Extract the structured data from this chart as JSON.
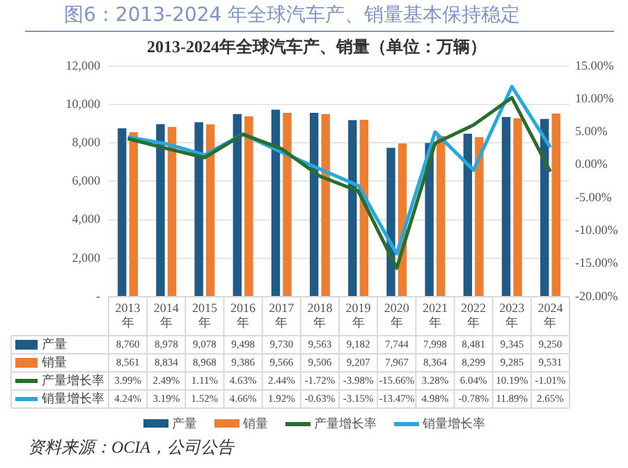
{
  "chart_data": {
    "type": "bar",
    "title": "2013-2024年全球汽车产、销量（单位：万辆）",
    "subtitle": "图6：2013-2024 年全球汽车产、销量基本保持稳定",
    "categories": [
      "2013年",
      "2014年",
      "2015年",
      "2016年",
      "2017年",
      "2018年",
      "2019年",
      "2020年",
      "2021年",
      "2022年",
      "2023年",
      "2024年"
    ],
    "series": [
      {
        "name": "产量",
        "color": "#1f5b86",
        "values": [
          8760,
          8978,
          9078,
          9498,
          9730,
          9563,
          9182,
          7744,
          7998,
          8481,
          9345,
          9250
        ],
        "value_labels": [
          "8,760",
          "8,978",
          "9,078",
          "9,498",
          "9,730",
          "9,563",
          "9,182",
          "7,744",
          "7,998",
          "8,481",
          "9,345",
          "9,250"
        ]
      },
      {
        "name": "销量",
        "color": "#ed7d31",
        "values": [
          8561,
          8834,
          8968,
          9386,
          9566,
          9506,
          9207,
          7967,
          8364,
          8299,
          9285,
          9531
        ],
        "value_labels": [
          "8,561",
          "8,834",
          "8,968",
          "9,386",
          "9,566",
          "9,506",
          "9,207",
          "7,967",
          "8,364",
          "8,299",
          "9,285",
          "9,531"
        ]
      },
      {
        "name": "产量增长率",
        "type": "line",
        "axis": "y2",
        "color": "#2a6e2f",
        "values": [
          3.99,
          2.49,
          1.11,
          4.63,
          2.44,
          -1.72,
          -3.98,
          -15.66,
          3.28,
          6.04,
          10.19,
          -1.01
        ],
        "value_labels": [
          "3.99%",
          "2.49%",
          "1.11%",
          "4.63%",
          "2.44%",
          "-1.72%",
          "-3.98%",
          "-15.66%",
          "3.28%",
          "6.04%",
          "10.19%",
          "-1.01%"
        ]
      },
      {
        "name": "销量增长率",
        "type": "line",
        "axis": "y2",
        "color": "#29a8e0",
        "values": [
          4.24,
          3.19,
          1.52,
          4.66,
          1.92,
          -0.63,
          -3.15,
          -13.47,
          4.98,
          -0.78,
          11.89,
          2.65
        ],
        "value_labels": [
          "4.24%",
          "3.19%",
          "1.52%",
          "4.66%",
          "1.92%",
          "-0.63%",
          "-3.15%",
          "-13.47%",
          "4.98%",
          "-0.78%",
          "11.89%",
          "2.65%"
        ]
      }
    ],
    "ylim": [
      0,
      12000
    ],
    "yticks": [
      {
        "value": 0,
        "label": "-"
      },
      {
        "value": 2000,
        "label": "2,000"
      },
      {
        "value": 4000,
        "label": "4,000"
      },
      {
        "value": 6000,
        "label": "6,000"
      },
      {
        "value": 8000,
        "label": "8,000"
      },
      {
        "value": 10000,
        "label": "10,000"
      },
      {
        "value": 12000,
        "label": "12,000"
      }
    ],
    "y2lim": [
      -20,
      15
    ],
    "y2ticks": [
      {
        "value": -20,
        "label": "-20.00%"
      },
      {
        "value": -15,
        "label": "-15.00%"
      },
      {
        "value": -10,
        "label": "-10.00%"
      },
      {
        "value": -5,
        "label": "-5.00%"
      },
      {
        "value": 0,
        "label": "0.00%"
      },
      {
        "value": 5,
        "label": "5.00%"
      },
      {
        "value": 10,
        "label": "10.00%"
      },
      {
        "value": 15,
        "label": "15.00%"
      }
    ],
    "grid": "y",
    "legend": "bottom",
    "marker": "none",
    "line_style": "solid",
    "annotations": [
      "资料来源：OCIA，公司公告"
    ]
  }
}
